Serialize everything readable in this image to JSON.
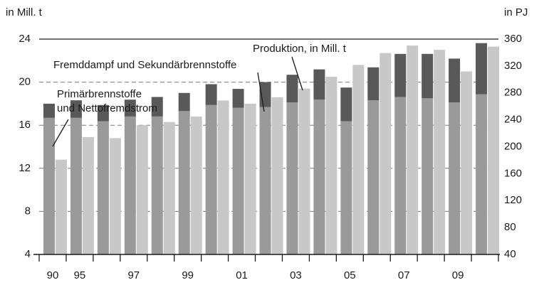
{
  "chart_data": {
    "type": "bar",
    "ylabel": "in Mill. t",
    "y2label": "in PJ",
    "categories": [
      "90",
      "95",
      null,
      "97",
      null,
      "99",
      null,
      "01",
      null,
      "03",
      null,
      "05",
      null,
      "07",
      null,
      "09",
      null
    ],
    "series": [
      {
        "name": "Primärbrennstoffe und Nettofremdstrom",
        "color": "#9a9a9a",
        "axis": "y2",
        "stack": true,
        "values": [
          203,
          203,
          198,
          205,
          205,
          213,
          222,
          218,
          219,
          226,
          230,
          198,
          229,
          234,
          232,
          226,
          238
        ]
      },
      {
        "name": "Fremddampf und Sekundärbrennstoffe",
        "color": "#595959",
        "axis": "y2",
        "stack": true,
        "values": [
          21,
          26,
          24,
          25,
          29,
          27,
          31,
          28,
          37,
          41,
          45,
          50,
          49,
          64,
          66,
          65,
          76
        ]
      },
      {
        "name": "Produktion, in Mill. t",
        "color": "#c8c8c8",
        "values": [
          12.8,
          14.9,
          14.8,
          16.0,
          16.3,
          16.8,
          18.3,
          18.0,
          18.6,
          19.4,
          20.5,
          21.6,
          22.7,
          23.4,
          23.0,
          21.0,
          23.3
        ]
      }
    ],
    "annotations": [
      "Primärbrennstoffe",
      "und Nettofremdstrom",
      "Fremddampf und Sekundärbrennstoffe",
      "Produktion, in Mill. t"
    ],
    "ylim": [
      4,
      24
    ],
    "yticks": [
      4,
      8,
      12,
      16,
      20,
      24
    ],
    "y2lim": [
      40,
      360
    ],
    "y2ticks": [
      40,
      80,
      120,
      160,
      200,
      240,
      280,
      320,
      360
    ],
    "grid": true
  }
}
